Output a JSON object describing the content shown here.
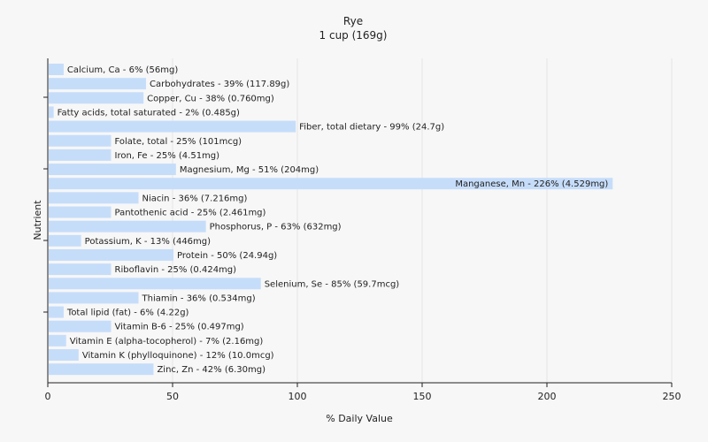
{
  "chart_data": {
    "type": "bar",
    "orientation": "horizontal",
    "title": "Rye",
    "subtitle": "1 cup (169g)",
    "xlabel": "% Daily Value",
    "ylabel": "Nutrient",
    "xlim": [
      0,
      250
    ],
    "xticks": [
      0,
      50,
      100,
      150,
      200,
      250
    ],
    "grid": true,
    "categories": [
      "Calcium, Ca",
      "Carbohydrates",
      "Copper, Cu",
      "Fatty acids, total saturated",
      "Fiber, total dietary",
      "Folate, total",
      "Iron, Fe",
      "Magnesium, Mg",
      "Manganese, Mn",
      "Niacin",
      "Pantothenic acid",
      "Phosphorus, P",
      "Potassium, K",
      "Protein",
      "Riboflavin",
      "Selenium, Se",
      "Thiamin",
      "Total lipid (fat)",
      "Vitamin B-6",
      "Vitamin E (alpha-tocopherol)",
      "Vitamin K (phylloquinone)",
      "Zinc, Zn"
    ],
    "values": [
      6,
      39,
      38,
      2,
      99,
      25,
      25,
      51,
      226,
      36,
      25,
      63,
      13,
      50,
      25,
      85,
      36,
      6,
      25,
      7,
      12,
      42
    ],
    "labels": [
      "Calcium, Ca - 6% (56mg)",
      "Carbohydrates - 39% (117.89g)",
      "Copper, Cu - 38% (0.760mg)",
      "Fatty acids, total saturated - 2% (0.485g)",
      "Fiber, total dietary - 99% (24.7g)",
      "Folate, total - 25% (101mcg)",
      "Iron, Fe - 25% (4.51mg)",
      "Magnesium, Mg - 51% (204mg)",
      "Manganese, Mn - 226% (4.529mg)",
      "Niacin - 36% (7.216mg)",
      "Pantothenic acid - 25% (2.461mg)",
      "Phosphorus, P - 63% (632mg)",
      "Potassium, K - 13% (446mg)",
      "Protein - 50% (24.94g)",
      "Riboflavin - 25% (0.424mg)",
      "Selenium, Se - 85% (59.7mcg)",
      "Thiamin - 36% (0.534mg)",
      "Total lipid (fat) - 6% (4.22g)",
      "Vitamin B-6 - 25% (0.497mg)",
      "Vitamin E (alpha-tocopherol) - 7% (2.16mg)",
      "Vitamin K (phylloquinone) - 12% (10.0mcg)",
      "Zinc, Zn - 42% (6.30mg)"
    ],
    "colors": {
      "bar": "#c6ddfa",
      "grid": "#e6e6e6",
      "axis": "#222222",
      "background": "#f7f7f7"
    }
  }
}
